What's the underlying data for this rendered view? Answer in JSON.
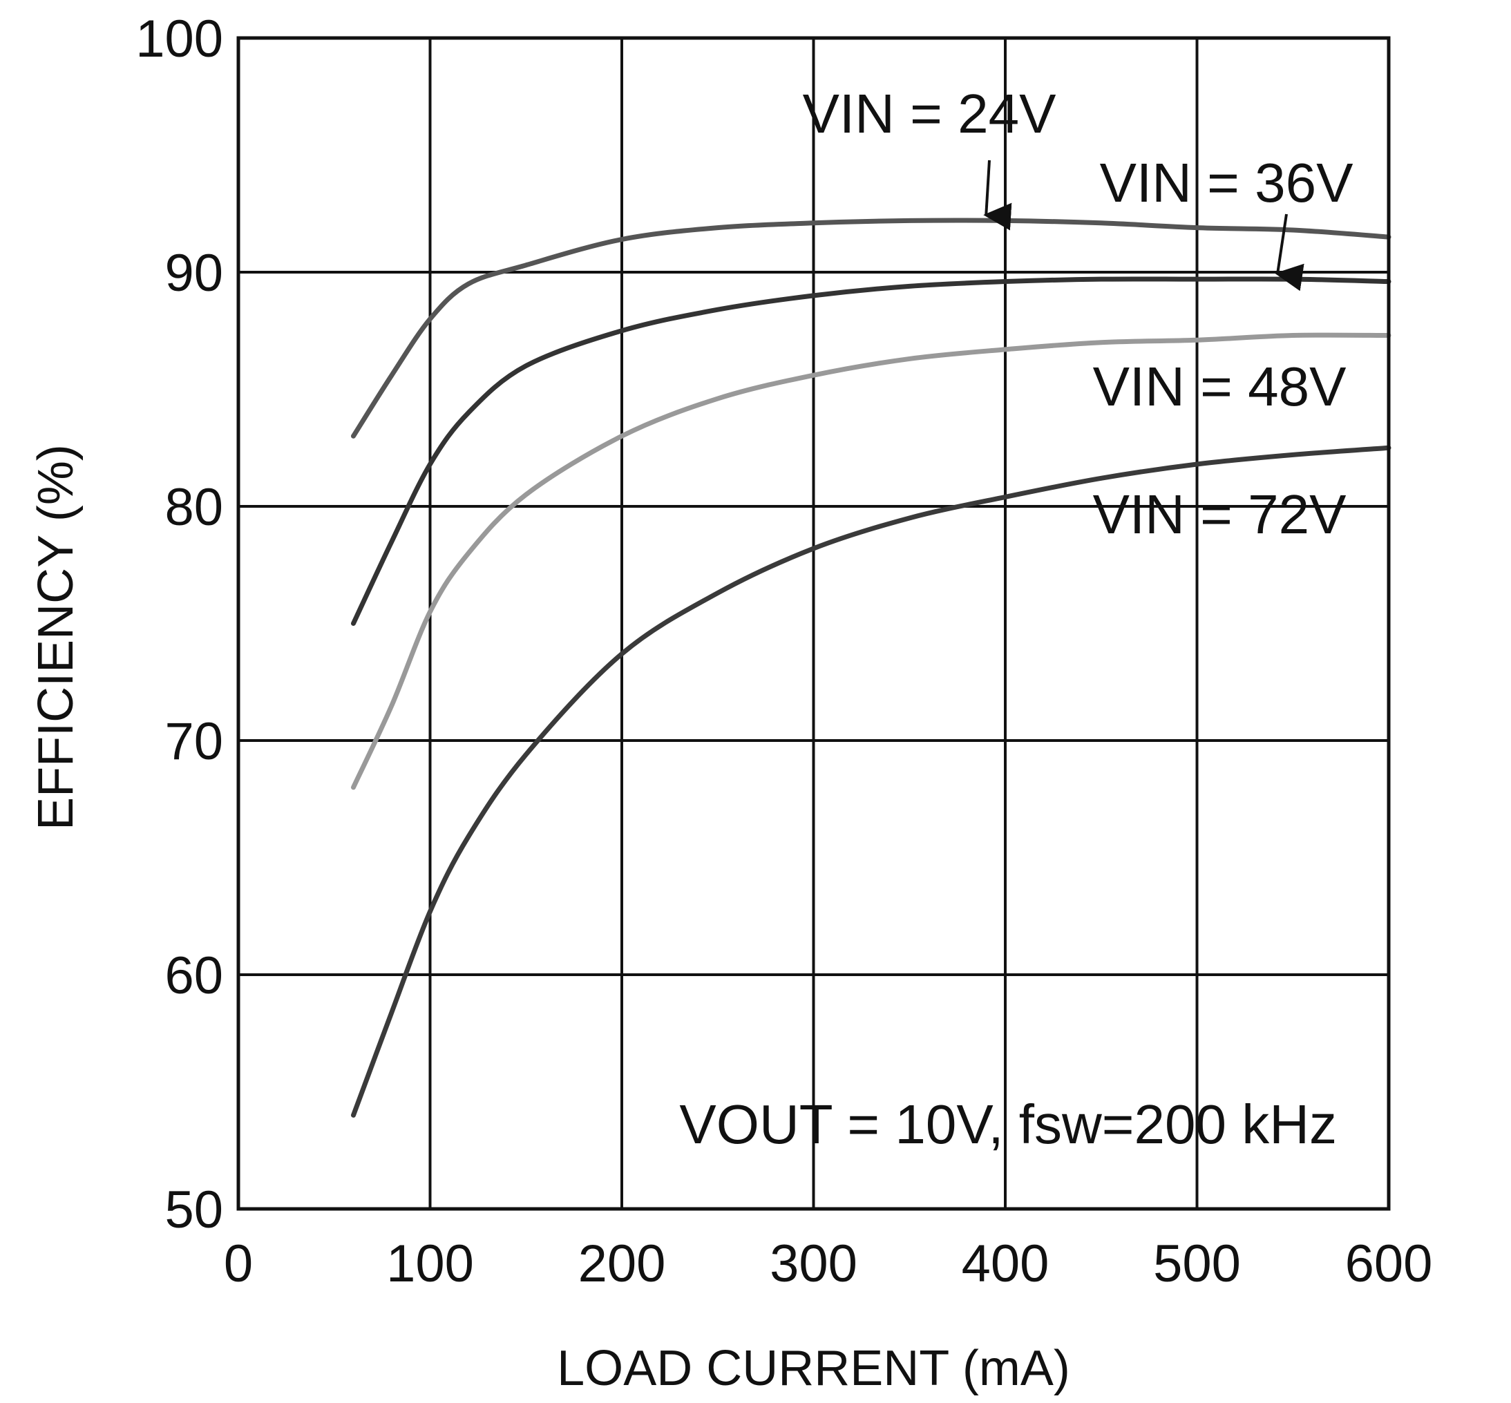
{
  "chart_data": {
    "type": "line",
    "xlabel": "LOAD CURRENT (mA)",
    "ylabel": "EFFICIENCY (%)",
    "xlim": [
      0,
      600
    ],
    "ylim": [
      50,
      100
    ],
    "xticks": [
      0,
      100,
      200,
      300,
      400,
      500,
      600
    ],
    "yticks": [
      50,
      60,
      70,
      80,
      90,
      100
    ],
    "grid": true,
    "annotation": "VOUT = 10V, fsw=200 kHz",
    "series": [
      {
        "name": "VIN = 24V",
        "color": "#555555",
        "x": [
          60,
          80,
          100,
          120,
          150,
          200,
          250,
          300,
          350,
          400,
          450,
          500,
          550,
          600
        ],
        "y": [
          83.0,
          85.6,
          88.0,
          89.5,
          90.3,
          91.4,
          91.9,
          92.1,
          92.2,
          92.2,
          92.1,
          91.9,
          91.8,
          91.5
        ]
      },
      {
        "name": "VIN = 36V",
        "color": "#333333",
        "x": [
          60,
          80,
          100,
          120,
          150,
          200,
          250,
          300,
          350,
          400,
          450,
          500,
          550,
          600
        ],
        "y": [
          75.0,
          78.5,
          81.8,
          84.0,
          86.0,
          87.5,
          88.4,
          89.0,
          89.4,
          89.6,
          89.7,
          89.7,
          89.7,
          89.6
        ]
      },
      {
        "name": "VIN = 48V",
        "color": "#999999",
        "x": [
          60,
          80,
          100,
          120,
          150,
          200,
          250,
          300,
          350,
          400,
          450,
          500,
          550,
          600
        ],
        "y": [
          68.0,
          71.5,
          75.5,
          78.0,
          80.5,
          83.0,
          84.6,
          85.6,
          86.3,
          86.7,
          87.0,
          87.1,
          87.3,
          87.3
        ]
      },
      {
        "name": "VIN = 72V",
        "color": "#3a3a3a",
        "x": [
          60,
          80,
          100,
          120,
          150,
          200,
          250,
          300,
          350,
          400,
          450,
          500,
          550,
          600
        ],
        "y": [
          54.0,
          58.4,
          62.7,
          65.9,
          69.4,
          73.7,
          76.3,
          78.2,
          79.5,
          80.4,
          81.2,
          81.8,
          82.2,
          82.5
        ]
      }
    ],
    "label_arrows": [
      {
        "series": "VIN = 24V",
        "arrow_to": [
          390,
          92.2
        ]
      },
      {
        "series": "VIN = 36V",
        "arrow_to": [
          542,
          89.7
        ]
      }
    ]
  }
}
